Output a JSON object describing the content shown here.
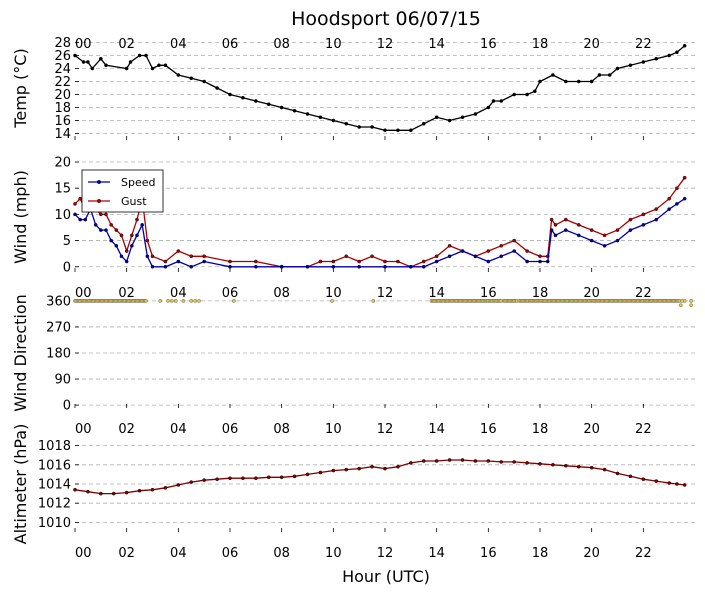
{
  "title": "Hoodsport 06/07/15",
  "xlabel": "Hour (UTC)",
  "x_ticks": [
    "00",
    "02",
    "04",
    "06",
    "08",
    "10",
    "12",
    "14",
    "16",
    "18",
    "20",
    "22"
  ],
  "colors": {
    "temp": "#000000",
    "speed": "#0000aa",
    "gust": "#aa0000",
    "direction": "#e8c84a",
    "altimeter": "#800000",
    "grid": "#b0b0b0"
  },
  "chart_data": [
    {
      "type": "line",
      "ylabel": "Temp (°C)",
      "xlim": [
        0,
        24
      ],
      "ylim": [
        13,
        29
      ],
      "y_ticks": [
        14,
        16,
        18,
        20,
        22,
        24,
        26,
        28
      ],
      "grid": true,
      "series": [
        {
          "x": [
            0,
            0.33,
            0.5,
            0.67,
            1.0,
            1.2,
            2.0,
            2.15,
            2.5,
            2.75,
            3.0,
            3.25,
            3.5,
            4.0,
            4.5,
            5.0,
            5.5,
            6.0,
            6.5,
            7.0,
            7.5,
            8.0,
            8.5,
            9.0,
            9.5,
            10.0,
            10.5,
            11.0,
            11.5,
            12.0,
            12.5,
            13.0,
            13.5,
            14.0,
            14.5,
            15.0,
            15.5,
            16.0,
            16.2,
            16.5,
            17.0,
            17.5,
            17.8,
            18.0,
            18.5,
            19.0,
            19.5,
            20.0,
            20.3,
            20.7,
            21.0,
            21.5,
            22.0,
            22.5,
            23.0,
            23.3,
            23.6
          ],
          "y": [
            26,
            25,
            25,
            24,
            25.5,
            24.5,
            24,
            25,
            26,
            26,
            24,
            24.5,
            24.5,
            23,
            22.5,
            22,
            21,
            20,
            19.5,
            19,
            18.5,
            18,
            17.5,
            17,
            16.5,
            16,
            15.5,
            15,
            15,
            14.5,
            14.5,
            14.5,
            15.5,
            16.5,
            16,
            16.5,
            17,
            18,
            19,
            19,
            20,
            20,
            20.5,
            22,
            23,
            22,
            22,
            22,
            23,
            23,
            24,
            24.5,
            25,
            25.5,
            26,
            26.5,
            27.5
          ]
        }
      ]
    },
    {
      "type": "line",
      "ylabel": "Wind (mph)",
      "xlim": [
        0,
        24
      ],
      "ylim": [
        -1,
        20
      ],
      "y_ticks": [
        0,
        5,
        10,
        15,
        20
      ],
      "grid": true,
      "legend": "top-left",
      "series": [
        {
          "name": "Speed",
          "x": [
            0,
            0.2,
            0.4,
            0.6,
            0.8,
            1.0,
            1.2,
            1.4,
            1.6,
            1.8,
            2.0,
            2.2,
            2.4,
            2.6,
            2.8,
            3.0,
            3.5,
            4.0,
            4.5,
            5.0,
            6.0,
            7.0,
            8.0,
            9.0,
            10.0,
            11.0,
            12.0,
            13.0,
            13.5,
            14.0,
            14.5,
            15.0,
            15.5,
            16.0,
            16.5,
            17.0,
            17.5,
            18.0,
            18.3,
            18.45,
            18.6,
            19.0,
            19.5,
            20.0,
            20.5,
            21.0,
            21.5,
            22.0,
            22.5,
            23.0,
            23.3,
            23.6
          ],
          "y": [
            10,
            9,
            9,
            11,
            8,
            7,
            7,
            5,
            4,
            2,
            1,
            4,
            6,
            8,
            2,
            0,
            0,
            1,
            0,
            1,
            0,
            0,
            0,
            0,
            0,
            0,
            0,
            0,
            0,
            1,
            2,
            3,
            2,
            1,
            2,
            3,
            1,
            1,
            1,
            7,
            6,
            7,
            6,
            5,
            4,
            5,
            7,
            8,
            9,
            11,
            12,
            13
          ]
        },
        {
          "name": "Gust",
          "x": [
            0,
            0.2,
            0.4,
            0.6,
            0.8,
            1.0,
            1.2,
            1.4,
            1.6,
            1.8,
            2.0,
            2.2,
            2.4,
            2.6,
            2.8,
            3.0,
            3.5,
            4.0,
            4.5,
            5.0,
            6.0,
            7.0,
            8.0,
            9.0,
            9.5,
            10.0,
            10.5,
            11.0,
            11.5,
            12.0,
            12.5,
            13.0,
            13.5,
            14.0,
            14.5,
            15.0,
            15.5,
            16.0,
            16.5,
            17.0,
            17.5,
            18.0,
            18.3,
            18.45,
            18.6,
            19.0,
            19.5,
            20.0,
            20.5,
            21.0,
            21.5,
            22.0,
            22.5,
            23.0,
            23.3,
            23.6
          ],
          "y": [
            12,
            13,
            11,
            13,
            11,
            10,
            10,
            8,
            7,
            6,
            3,
            6,
            9,
            13,
            5,
            2,
            1,
            3,
            2,
            2,
            1,
            1,
            0,
            0,
            1,
            1,
            2,
            1,
            2,
            1,
            1,
            0,
            1,
            2,
            4,
            3,
            2,
            3,
            4,
            5,
            3,
            2,
            2,
            9,
            8,
            9,
            8,
            7,
            6,
            7,
            9,
            10,
            11,
            13,
            15,
            17
          ]
        }
      ]
    },
    {
      "type": "scatter",
      "ylabel": "Wind Direction",
      "xlim": [
        0,
        24
      ],
      "ylim": [
        -10,
        370
      ],
      "y_ticks": [
        0,
        90,
        180,
        270,
        360
      ],
      "grid": true,
      "segments": [
        {
          "x": [
            0,
            2.75
          ],
          "y": 360
        },
        {
          "x": [
            13.8,
            16.5
          ],
          "y": 360
        },
        {
          "x": [
            16.6,
            17.1
          ],
          "y": 360
        },
        {
          "x": [
            17.2,
            23.4
          ],
          "y": 360
        }
      ],
      "points": [
        {
          "x": 3.3,
          "y": 360
        },
        {
          "x": 3.6,
          "y": 360
        },
        {
          "x": 3.75,
          "y": 360
        },
        {
          "x": 3.9,
          "y": 360
        },
        {
          "x": 4.2,
          "y": 360
        },
        {
          "x": 4.5,
          "y": 360
        },
        {
          "x": 4.65,
          "y": 360
        },
        {
          "x": 4.8,
          "y": 360
        },
        {
          "x": 6.15,
          "y": 360
        },
        {
          "x": 9.95,
          "y": 360
        },
        {
          "x": 11.55,
          "y": 360
        },
        {
          "x": 23.5,
          "y": 360
        },
        {
          "x": 23.6,
          "y": 360
        },
        {
          "x": 23.85,
          "y": 360
        },
        {
          "x": 23.45,
          "y": 345
        },
        {
          "x": 23.85,
          "y": 345
        }
      ]
    },
    {
      "type": "line",
      "ylabel": "Altimeter (hPa)",
      "xlim": [
        0,
        24
      ],
      "ylim": [
        1009,
        1019
      ],
      "y_ticks": [
        1010,
        1012,
        1014,
        1016,
        1018
      ],
      "grid": true,
      "series": [
        {
          "x": [
            0,
            0.5,
            1.0,
            1.5,
            2.0,
            2.5,
            3.0,
            3.5,
            4.0,
            4.5,
            5.0,
            5.5,
            6.0,
            6.5,
            7.0,
            7.5,
            8.0,
            8.5,
            9.0,
            9.5,
            10.0,
            10.5,
            11.0,
            11.5,
            12.0,
            12.5,
            13.0,
            13.5,
            14.0,
            14.5,
            15.0,
            15.5,
            16.0,
            16.5,
            17.0,
            17.5,
            18.0,
            18.5,
            19.0,
            19.5,
            20.0,
            20.5,
            21.0,
            21.5,
            22.0,
            22.5,
            23.0,
            23.3,
            23.6
          ],
          "y": [
            1013.4,
            1013.2,
            1013.0,
            1013.0,
            1013.1,
            1013.3,
            1013.4,
            1013.6,
            1013.9,
            1014.2,
            1014.4,
            1014.5,
            1014.6,
            1014.6,
            1014.6,
            1014.7,
            1014.7,
            1014.8,
            1015.0,
            1015.2,
            1015.4,
            1015.5,
            1015.6,
            1015.8,
            1015.6,
            1015.8,
            1016.2,
            1016.4,
            1016.4,
            1016.5,
            1016.5,
            1016.4,
            1016.4,
            1016.3,
            1016.3,
            1016.2,
            1016.1,
            1016.0,
            1015.9,
            1015.8,
            1015.7,
            1015.5,
            1015.1,
            1014.8,
            1014.5,
            1014.3,
            1014.1,
            1014.0,
            1013.9
          ]
        }
      ]
    }
  ]
}
